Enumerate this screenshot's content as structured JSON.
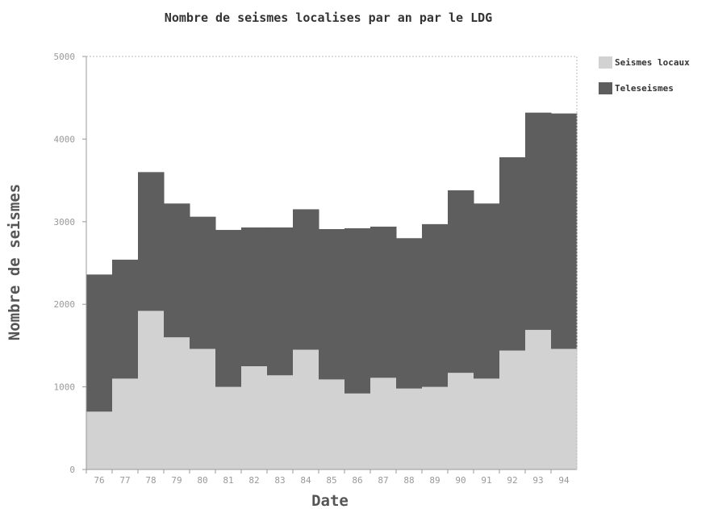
{
  "chart_data": {
    "type": "bar",
    "stacked": true,
    "title": "Nombre de seismes localises par an par le LDG",
    "xlabel": "Date",
    "ylabel": "Nombre de seismes",
    "ylim": [
      0,
      5000
    ],
    "yticks": [
      "0",
      "1000",
      "2000",
      "3000",
      "4000",
      "5000"
    ],
    "categories": [
      "76",
      "77",
      "78",
      "79",
      "80",
      "81",
      "82",
      "83",
      "84",
      "85",
      "86",
      "87",
      "88",
      "89",
      "90",
      "91",
      "92",
      "93",
      "94"
    ],
    "series": [
      {
        "name": "Seismes locaux",
        "color": "#d2d2d2",
        "values": [
          700,
          1100,
          1920,
          1600,
          1460,
          1000,
          1250,
          1140,
          1450,
          1090,
          920,
          1110,
          980,
          1000,
          1170,
          1100,
          1440,
          1690,
          1460
        ]
      },
      {
        "name": "Teleseismes",
        "color": "#5e5e5e",
        "values": [
          1660,
          1440,
          1680,
          1620,
          1600,
          1900,
          1680,
          1790,
          1700,
          1820,
          2000,
          1830,
          1820,
          1970,
          2210,
          2120,
          2340,
          2630,
          2850
        ]
      }
    ],
    "legend": "top-right",
    "grid": false
  }
}
